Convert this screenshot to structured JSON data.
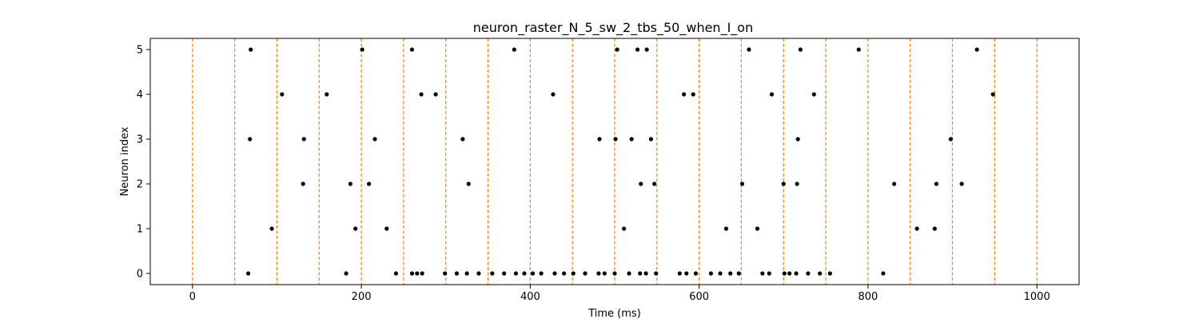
{
  "chart_data": {
    "type": "scatter",
    "title": "neuron_raster_N_5_sw_2_tbs_50_when_I_on",
    "xlabel": "Time (ms)",
    "ylabel": "Neuron index",
    "xlim": [
      -50,
      1050
    ],
    "ylim": [
      -0.25,
      5.25
    ],
    "xticks": [
      0,
      200,
      400,
      600,
      800,
      1000
    ],
    "yticks": [
      0,
      1,
      2,
      3,
      4,
      5
    ],
    "grid": false,
    "vlines": {
      "x": [
        0,
        50,
        100,
        150,
        200,
        250,
        300,
        350,
        400,
        450,
        500,
        550,
        600,
        650,
        700,
        750,
        800,
        850,
        900,
        950,
        1000
      ],
      "color": "#ff7f0e",
      "style": "dashed"
    },
    "point_color": "#000000",
    "points": [
      [
        69,
        5
      ],
      [
        201,
        5
      ],
      [
        260,
        5
      ],
      [
        381,
        5
      ],
      [
        503,
        5
      ],
      [
        527,
        5
      ],
      [
        538,
        5
      ],
      [
        659,
        5
      ],
      [
        720,
        5
      ],
      [
        789,
        5
      ],
      [
        929,
        5
      ],
      [
        106,
        4
      ],
      [
        159,
        4
      ],
      [
        271,
        4
      ],
      [
        288,
        4
      ],
      [
        427,
        4
      ],
      [
        582,
        4
      ],
      [
        593,
        4
      ],
      [
        686,
        4
      ],
      [
        736,
        4
      ],
      [
        948,
        4
      ],
      [
        68,
        3
      ],
      [
        132,
        3
      ],
      [
        216,
        3
      ],
      [
        320,
        3
      ],
      [
        482,
        3
      ],
      [
        501,
        3
      ],
      [
        520,
        3
      ],
      [
        543,
        3
      ],
      [
        717,
        3
      ],
      [
        898,
        3
      ],
      [
        131,
        2
      ],
      [
        187,
        2
      ],
      [
        209,
        2
      ],
      [
        327,
        2
      ],
      [
        531,
        2
      ],
      [
        547,
        2
      ],
      [
        651,
        2
      ],
      [
        700,
        2
      ],
      [
        716,
        2
      ],
      [
        831,
        2
      ],
      [
        881,
        2
      ],
      [
        911,
        2
      ],
      [
        94,
        1
      ],
      [
        193,
        1
      ],
      [
        230,
        1
      ],
      [
        511,
        1
      ],
      [
        632,
        1
      ],
      [
        669,
        1
      ],
      [
        858,
        1
      ],
      [
        879,
        1
      ],
      [
        66,
        0
      ],
      [
        182,
        0
      ],
      [
        241,
        0
      ],
      [
        260,
        0
      ],
      [
        266,
        0
      ],
      [
        272,
        0
      ],
      [
        299,
        0
      ],
      [
        313,
        0
      ],
      [
        325,
        0
      ],
      [
        339,
        0
      ],
      [
        355,
        0
      ],
      [
        369,
        0
      ],
      [
        383,
        0
      ],
      [
        393,
        0
      ],
      [
        403,
        0
      ],
      [
        413,
        0
      ],
      [
        429,
        0
      ],
      [
        440,
        0
      ],
      [
        451,
        0
      ],
      [
        465,
        0
      ],
      [
        481,
        0
      ],
      [
        488,
        0
      ],
      [
        500,
        0
      ],
      [
        517,
        0
      ],
      [
        530,
        0
      ],
      [
        537,
        0
      ],
      [
        549,
        0
      ],
      [
        577,
        0
      ],
      [
        585,
        0
      ],
      [
        596,
        0
      ],
      [
        614,
        0
      ],
      [
        625,
        0
      ],
      [
        637,
        0
      ],
      [
        647,
        0
      ],
      [
        675,
        0
      ],
      [
        683,
        0
      ],
      [
        701,
        0
      ],
      [
        707,
        0
      ],
      [
        715,
        0
      ],
      [
        729,
        0
      ],
      [
        743,
        0
      ],
      [
        755,
        0
      ],
      [
        818,
        0
      ]
    ]
  }
}
